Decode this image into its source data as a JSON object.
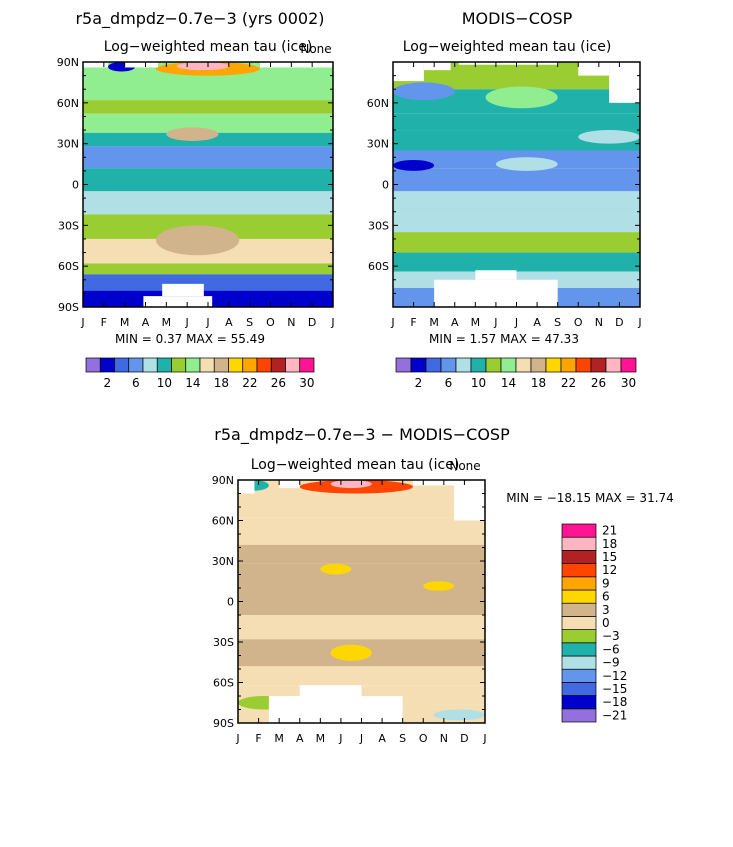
{
  "figure": {
    "diff_title": "r5a_dmpdz−0.7e−3 − MODIS−COSP"
  },
  "scales": {
    "abs": {
      "colors": [
        "#9370db",
        "#0000cd",
        "#4169e1",
        "#6495ed",
        "#b0e0e6",
        "#20b2aa",
        "#9acd32",
        "#90ee90",
        "#f5deb3",
        "#d2b48c",
        "#ffd700",
        "#ffa500",
        "#ff4500",
        "#b22222",
        "#ffb6c1",
        "#ff1493"
      ],
      "labels": [
        "2",
        "6",
        "10",
        "14",
        "18",
        "22",
        "26",
        "30"
      ]
    },
    "diff": {
      "colors": [
        "#9370db",
        "#0000cd",
        "#4169e1",
        "#6495ed",
        "#b0e0e6",
        "#20b2aa",
        "#9acd32",
        "#f5deb3",
        "#d2b48c",
        "#ffd700",
        "#ffa500",
        "#ff4500",
        "#b22222",
        "#ffb6c1",
        "#ff1493"
      ],
      "labels": [
        "−21",
        "−18",
        "−15",
        "−12",
        "−9",
        "−6",
        "−3",
        "0",
        "3",
        "6",
        "9",
        "12",
        "15",
        "18",
        "21"
      ]
    }
  },
  "chart_data": [
    {
      "type": "heatmap",
      "id": "model",
      "title": "r5a_dmpdz−0.7e−3 (yrs 0002)",
      "subtitle": "Log−weighted mean tau (ice)",
      "corner_label": "None",
      "months": [
        "J",
        "F",
        "M",
        "A",
        "M",
        "J",
        "J",
        "A",
        "S",
        "O",
        "N",
        "D",
        "J"
      ],
      "lat_ticks": [
        "90N",
        "60N",
        "30N",
        "0",
        "30S",
        "60S",
        "90S"
      ],
      "show_lat_labels_ends": true,
      "stats": {
        "min_label": "MIN =",
        "min": "0.37",
        "max_label": "MAX =",
        "max": "55.49"
      },
      "colorbar": "abs",
      "lat_bands": [
        {
          "lat_from": 90,
          "lat_to": 62,
          "level": 7
        },
        {
          "lat_from": 62,
          "lat_to": 52,
          "level": 6
        },
        {
          "lat_from": 52,
          "lat_to": 38,
          "level": 7
        },
        {
          "lat_from": 38,
          "lat_to": 28,
          "level": 5
        },
        {
          "lat_from": 28,
          "lat_to": 12,
          "level": 3
        },
        {
          "lat_from": 12,
          "lat_to": -5,
          "level": 5
        },
        {
          "lat_from": -5,
          "lat_to": -22,
          "level": 4
        },
        {
          "lat_from": -22,
          "lat_to": -40,
          "level": 6
        },
        {
          "lat_from": -40,
          "lat_to": -58,
          "level": 8
        },
        {
          "lat_from": -58,
          "lat_to": -66,
          "level": 6
        },
        {
          "lat_from": -66,
          "lat_to": -78,
          "level": 2
        },
        {
          "lat_from": -78,
          "lat_to": -90,
          "level": 1
        }
      ],
      "blobs": [
        {
          "month_from": 3.5,
          "month_to": 8.5,
          "lat_from": 90,
          "lat_to": 80,
          "level": 11
        },
        {
          "month_from": 4.5,
          "month_to": 7,
          "lat_from": 90,
          "lat_to": 84,
          "level": 14
        },
        {
          "month_from": 1.2,
          "month_to": 2.5,
          "lat_from": 90,
          "lat_to": 83,
          "level": 1
        },
        {
          "month_from": 3.5,
          "month_to": 7.5,
          "lat_from": -30,
          "lat_to": -52,
          "level": 9
        },
        {
          "month_from": 4,
          "month_to": 6.5,
          "lat_from": 42,
          "lat_to": 32,
          "level": 9
        }
      ],
      "missing": [
        {
          "month_from": 0,
          "month_to": 1.2,
          "lat_from": 90,
          "lat_to": 86
        },
        {
          "month_from": 2,
          "month_to": 3.6,
          "lat_from": 90,
          "lat_to": 86
        },
        {
          "month_from": 8.5,
          "month_to": 12,
          "lat_from": 90,
          "lat_to": 86
        },
        {
          "month_from": 2.9,
          "month_to": 6.2,
          "lat_from": -82,
          "lat_to": -90
        },
        {
          "month_from": 3.8,
          "month_to": 5.8,
          "lat_from": -73,
          "lat_to": -82
        }
      ]
    },
    {
      "type": "heatmap",
      "id": "obs",
      "title": "MODIS−COSP",
      "subtitle": "Log−weighted mean tau (ice)",
      "corner_label": "",
      "months": [
        "J",
        "F",
        "M",
        "A",
        "M",
        "J",
        "J",
        "A",
        "S",
        "O",
        "N",
        "D",
        "J"
      ],
      "lat_ticks": [
        "",
        "60N",
        "30N",
        "0",
        "30S",
        "60S",
        ""
      ],
      "show_lat_labels_ends": false,
      "stats": {
        "min_label": "MIN =",
        "min": "1.57",
        "max_label": "MAX =",
        "max": "47.33"
      },
      "colorbar": "abs",
      "lat_bands": [
        {
          "lat_from": 90,
          "lat_to": 70,
          "level": 6
        },
        {
          "lat_from": 70,
          "lat_to": 52,
          "level": 5
        },
        {
          "lat_from": 52,
          "lat_to": 40,
          "level": 5
        },
        {
          "lat_from": 40,
          "lat_to": 25,
          "level": 5
        },
        {
          "lat_from": 25,
          "lat_to": 12,
          "level": 3
        },
        {
          "lat_from": 12,
          "lat_to": -5,
          "level": 3
        },
        {
          "lat_from": -5,
          "lat_to": -22,
          "level": 4
        },
        {
          "lat_from": -22,
          "lat_to": -35,
          "level": 4
        },
        {
          "lat_from": -35,
          "lat_to": -50,
          "level": 6
        },
        {
          "lat_from": -50,
          "lat_to": -64,
          "level": 5
        },
        {
          "lat_from": -64,
          "lat_to": -76,
          "level": 4
        },
        {
          "lat_from": -76,
          "lat_to": -90,
          "level": 3
        }
      ],
      "blobs": [
        {
          "month_from": 0,
          "month_to": 3,
          "lat_from": 75,
          "lat_to": 62,
          "level": 3
        },
        {
          "month_from": 4.5,
          "month_to": 8,
          "lat_from": 72,
          "lat_to": 56,
          "level": 7
        },
        {
          "month_from": 0,
          "month_to": 2,
          "lat_from": 18,
          "lat_to": 10,
          "level": 1
        },
        {
          "month_from": 5,
          "month_to": 8,
          "lat_from": 20,
          "lat_to": 10,
          "level": 4
        },
        {
          "month_from": 9,
          "month_to": 12,
          "lat_from": 40,
          "lat_to": 30,
          "level": 4
        }
      ],
      "missing": [
        {
          "month_from": 0,
          "month_to": 1.5,
          "lat_from": 90,
          "lat_to": 76
        },
        {
          "month_from": 1.5,
          "month_to": 2.8,
          "lat_from": 90,
          "lat_to": 84
        },
        {
          "month_from": 3.2,
          "month_to": 8,
          "lat_from": 90,
          "lat_to": 88
        },
        {
          "month_from": 9,
          "month_to": 10.5,
          "lat_from": 90,
          "lat_to": 80
        },
        {
          "month_from": 10.5,
          "month_to": 12,
          "lat_from": 90,
          "lat_to": 60
        },
        {
          "month_from": 2,
          "month_to": 8,
          "lat_from": -70,
          "lat_to": -90
        },
        {
          "month_from": 4,
          "month_to": 6,
          "lat_from": -63,
          "lat_to": -70
        }
      ]
    },
    {
      "type": "heatmap",
      "id": "diff",
      "title": "",
      "subtitle": "Log−weighted mean tau (ice)",
      "corner_label": "None",
      "months": [
        "J",
        "F",
        "M",
        "A",
        "M",
        "J",
        "J",
        "A",
        "S",
        "O",
        "N",
        "D",
        "J"
      ],
      "lat_ticks": [
        "90N",
        "60N",
        "30N",
        "0",
        "30S",
        "60S",
        "90S"
      ],
      "show_lat_labels_ends": true,
      "stats": {
        "min_label": "MIN =",
        "min": "−18.15",
        "max_label": "MAX =",
        "max": "31.74"
      },
      "colorbar": "diff",
      "lat_bands": [
        {
          "lat_from": 90,
          "lat_to": 62,
          "level": 7
        },
        {
          "lat_from": 62,
          "lat_to": 42,
          "level": 7
        },
        {
          "lat_from": 42,
          "lat_to": 28,
          "level": 8
        },
        {
          "lat_from": 28,
          "lat_to": 10,
          "level": 8
        },
        {
          "lat_from": 10,
          "lat_to": -10,
          "level": 8
        },
        {
          "lat_from": -10,
          "lat_to": -28,
          "level": 7
        },
        {
          "lat_from": -28,
          "lat_to": -48,
          "level": 8
        },
        {
          "lat_from": -48,
          "lat_to": -62,
          "level": 7
        },
        {
          "lat_from": -62,
          "lat_to": -76,
          "level": 7
        },
        {
          "lat_from": -76,
          "lat_to": -90,
          "level": 7
        }
      ],
      "blobs": [
        {
          "month_from": 3,
          "month_to": 8.5,
          "lat_from": 90,
          "lat_to": 80,
          "level": 11
        },
        {
          "month_from": 4.5,
          "month_to": 6.5,
          "lat_from": 90,
          "lat_to": 84,
          "level": 13
        },
        {
          "month_from": 0,
          "month_to": 1.5,
          "lat_from": 90,
          "lat_to": 82,
          "level": 5
        },
        {
          "month_from": 4.5,
          "month_to": 6.5,
          "lat_from": -32,
          "lat_to": -44,
          "level": 9
        },
        {
          "month_from": 4,
          "month_to": 5.5,
          "lat_from": 28,
          "lat_to": 20,
          "level": 9
        },
        {
          "month_from": 9,
          "month_to": 10.5,
          "lat_from": 15,
          "lat_to": 8,
          "level": 9
        },
        {
          "month_from": 0,
          "month_to": 2.5,
          "lat_from": -70,
          "lat_to": -80,
          "level": 6
        },
        {
          "month_from": 9.5,
          "month_to": 12,
          "lat_from": -80,
          "lat_to": -88,
          "level": 4
        }
      ],
      "missing": [
        {
          "month_from": 0,
          "month_to": 0.8,
          "lat_from": 90,
          "lat_to": 80
        },
        {
          "month_from": 2,
          "month_to": 3,
          "lat_from": 90,
          "lat_to": 84
        },
        {
          "month_from": 8.5,
          "month_to": 12,
          "lat_from": 90,
          "lat_to": 86
        },
        {
          "month_from": 10.5,
          "month_to": 12,
          "lat_from": 90,
          "lat_to": 60
        },
        {
          "month_from": 1.5,
          "month_to": 8,
          "lat_from": -70,
          "lat_to": -90
        },
        {
          "month_from": 3,
          "month_to": 6,
          "lat_from": -62,
          "lat_to": -70
        }
      ]
    }
  ]
}
